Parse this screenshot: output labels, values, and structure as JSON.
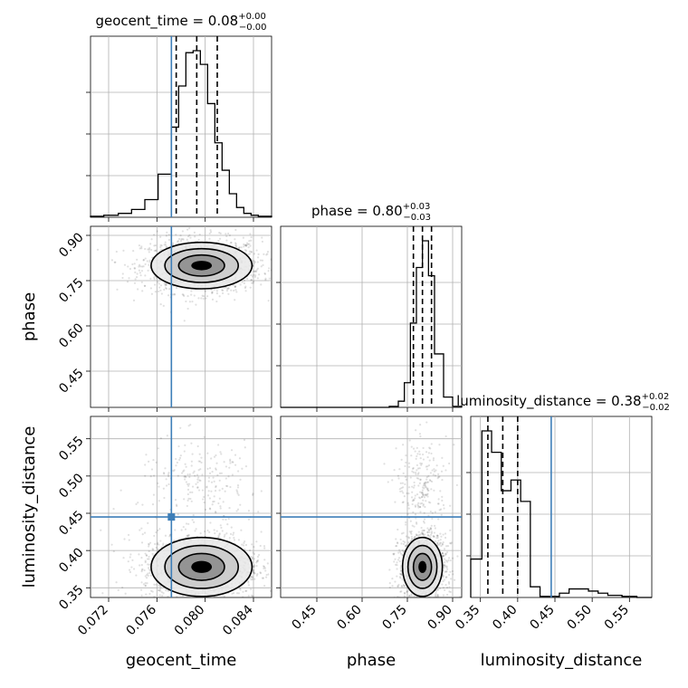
{
  "chart_data": {
    "type": "corner",
    "parameters": [
      "geocent_time",
      "phase",
      "luminosity_distance"
    ],
    "truths": {
      "geocent_time": 0.0772,
      "phase": null,
      "luminosity_distance": 0.445
    },
    "accent_color": "#3d7eb8",
    "ticks": {
      "geocent_time": [
        "0.072",
        "0.076",
        "0.080",
        "0.084"
      ],
      "phase": [
        "0.45",
        "0.60",
        "0.75",
        "0.90"
      ],
      "luminosity_distance": [
        "0.35",
        "0.40",
        "0.45",
        "0.50",
        "0.55"
      ]
    },
    "ranges": {
      "geocent_time": [
        0.0705,
        0.0855
      ],
      "phase": [
        0.33,
        0.93
      ],
      "luminosity_distance": [
        0.337,
        0.58
      ]
    },
    "marginals": [
      {
        "param": "geocent_time",
        "title_prefix": "geocent_time = 0.08",
        "title_sup": "+0.00",
        "title_sub": "−0.00",
        "quantiles": [
          0.0776,
          0.0793,
          0.081
        ],
        "bin_edges": [
          0.0705,
          0.0716,
          0.0728,
          0.0739,
          0.075,
          0.0761,
          0.0772,
          0.0778,
          0.0784,
          0.079,
          0.0796,
          0.0802,
          0.0808,
          0.0814,
          0.082,
          0.0826,
          0.0832,
          0.0838,
          0.0844,
          0.0855
        ],
        "counts": [
          0.5,
          1,
          2,
          4,
          9,
          22,
          46,
          67,
          84,
          85,
          78,
          58,
          38,
          24,
          12,
          5,
          2,
          1,
          0.5
        ]
      },
      {
        "param": "phase",
        "title_prefix": "phase = 0.80",
        "title_sup": "+0.03",
        "title_sub": "−0.03",
        "quantiles": [
          0.77,
          0.8,
          0.83
        ],
        "bin_edges": [
          0.33,
          0.69,
          0.72,
          0.74,
          0.76,
          0.78,
          0.8,
          0.82,
          0.84,
          0.87,
          0.9,
          0.93
        ],
        "counts": [
          0,
          0.5,
          3,
          12,
          41,
          68,
          81,
          64,
          26,
          5,
          0.5
        ]
      },
      {
        "param": "luminosity_distance",
        "title_prefix": "luminosity_distance = 0.38",
        "title_sup": "+0.02",
        "title_sub": "−0.02",
        "quantiles": [
          0.36,
          0.38,
          0.4
        ],
        "bin_edges": [
          0.337,
          0.352,
          0.365,
          0.378,
          0.391,
          0.404,
          0.417,
          0.43,
          0.443,
          0.456,
          0.469,
          0.482,
          0.495,
          0.508,
          0.521,
          0.54,
          0.56,
          0.58
        ],
        "counts": [
          18,
          78,
          68,
          50,
          55,
          45,
          5,
          0.5,
          0.5,
          2,
          4,
          4,
          3,
          2,
          1,
          0.5,
          0
        ]
      }
    ],
    "pairs": [
      {
        "x": "geocent_time",
        "y": "phase",
        "center": [
          0.0797,
          0.8
        ],
        "spread": [
          0.0019,
          0.035
        ]
      },
      {
        "x": "geocent_time",
        "y": "luminosity_distance",
        "center": [
          0.0797,
          0.378
        ],
        "spread": [
          0.0019,
          0.018
        ]
      },
      {
        "x": "phase",
        "y": "luminosity_distance",
        "center": [
          0.8,
          0.378
        ],
        "spread": [
          0.03,
          0.018
        ]
      }
    ],
    "xlabels": [
      "geocent_time",
      "phase",
      "luminosity_distance"
    ],
    "ylabels": [
      "phase",
      "luminosity_distance"
    ]
  }
}
